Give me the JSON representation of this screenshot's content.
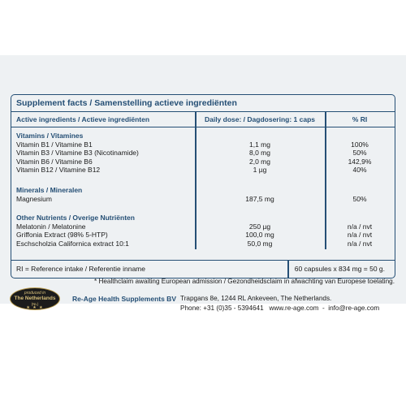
{
  "table": {
    "title": "Supplement facts / Samenstelling actieve ingrediënten",
    "headers": {
      "ingredients": "Active ingredients / Actieve ingrediënten",
      "dose": "Daily dose: / Dagdosering: 1 caps",
      "ri": "% RI"
    },
    "vitamins": {
      "title": "Vitamins / Vitamines",
      "rows": [
        {
          "name": "Vitamin B1 / Vitamine B1",
          "dose": "1,1 mg",
          "ri": "100%"
        },
        {
          "name": "Vitamin B3 / Vitamine B3 (Nicotinamide)",
          "dose": "8,0 mg",
          "ri": "50%"
        },
        {
          "name": "Vitamin B6 / Vitamine B6",
          "dose": "2,0 mg",
          "ri": "142,9%"
        },
        {
          "name": "Vitamin B12 / Vitamine B12",
          "dose": "1 µg",
          "ri": "40%"
        }
      ]
    },
    "minerals": {
      "title": "Minerals / Mineralen",
      "rows": [
        {
          "name": "Magnesium",
          "dose": "187,5 mg",
          "ri": "50%"
        }
      ]
    },
    "other": {
      "title": "Other Nutrients / Overige Nutriënten",
      "rows": [
        {
          "name": "Melatonin / Melatonine",
          "dose": "250 µg",
          "ri": "n/a / nvt"
        },
        {
          "name": "Griffonia Extract (98% 5-HTP)",
          "dose": "100,0 mg",
          "ri": "n/a / nvt"
        },
        {
          "name": "Eschscholzia Californica extract 10:1",
          "dose": "50,0 mg",
          "ri": "n/a / nvt"
        }
      ]
    },
    "footer": {
      "ri_note": "RI = Reference intake / Referentie inname",
      "capsules": "60 capsules x 834 mg = 50 g."
    }
  },
  "healthclaim": "* Healthclaim awaiting European admission / Gezondheidsclaim in afwachting van Europese toelating.",
  "badge": {
    "line1": "produced in",
    "line2": "The Netherlands",
    "line3": "(NL)",
    "stars": "★ ★ ★"
  },
  "company": {
    "name": "Re-Age Health Supplements BV",
    "address": "Trapgans 8e, 1244 RL Ankeveen, The Netherlands.",
    "contact": "Phone: +31 (0)35 - 5394641   www.re-age.com  -  info@re-age.com"
  },
  "colors": {
    "accent": "#254f75",
    "panel_bg": "#eef1f3",
    "badge_gold": "#b89a4a"
  }
}
